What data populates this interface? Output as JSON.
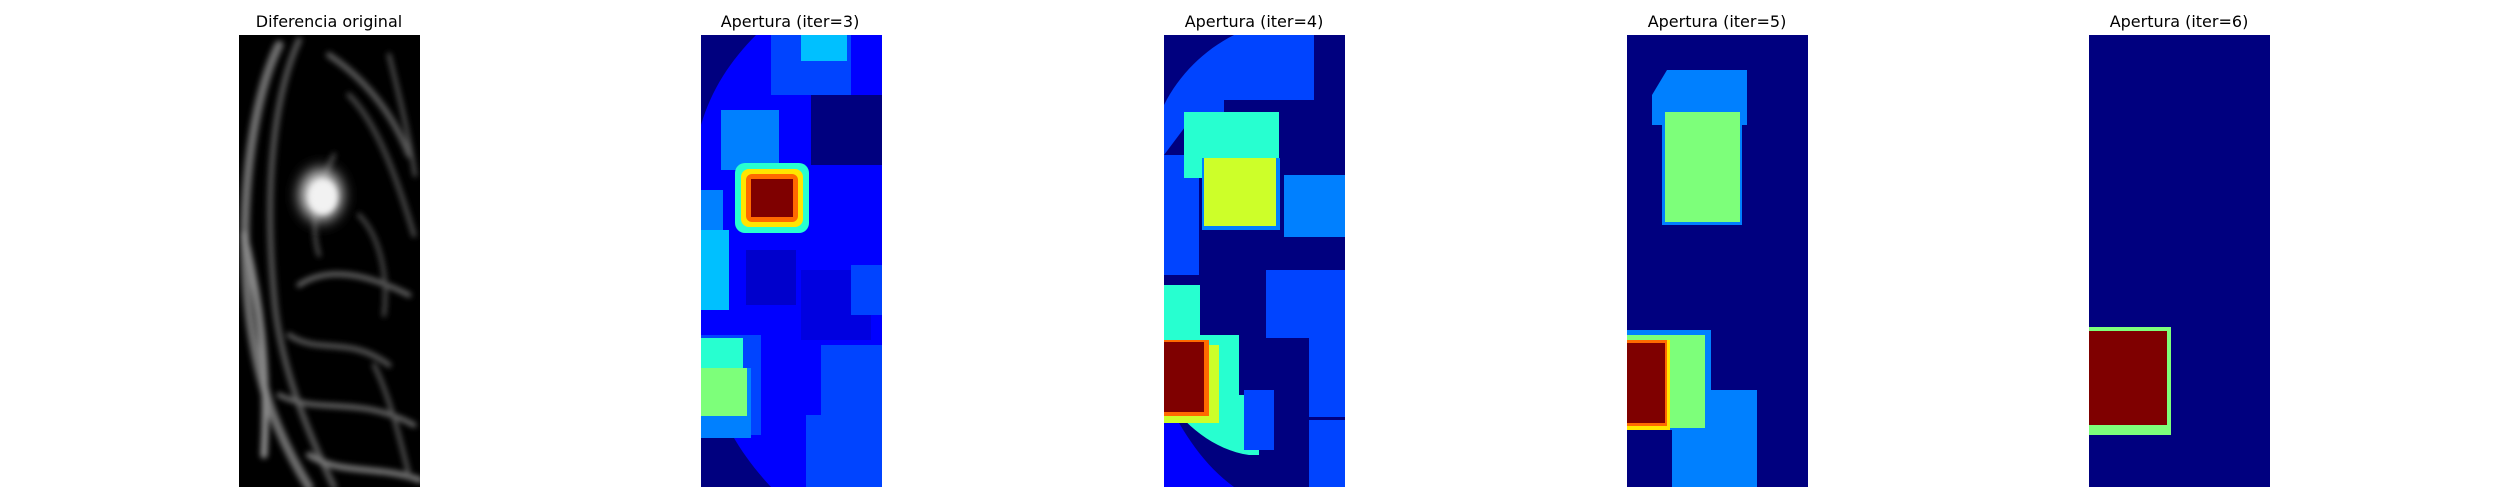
{
  "figure": {
    "panels": [
      {
        "id": "original",
        "title": "Diferencia original"
      },
      {
        "id": "iter3",
        "title": "Apertura (iter=3)"
      },
      {
        "id": "iter4",
        "title": "Apertura (iter=4)"
      },
      {
        "id": "iter5",
        "title": "Apertura (iter=5)"
      },
      {
        "id": "iter6",
        "title": "Apertura (iter=6)"
      }
    ]
  },
  "colors": {
    "jet_dark_blue": "#00007f",
    "jet_blue": "#0000ff",
    "jet_mid_blue": "#0044ff",
    "jet_light_blue": "#0080ff",
    "jet_sky": "#00c0ff",
    "jet_cyan": "#27ffd0",
    "jet_green": "#7dff7a",
    "jet_yellow_green": "#cdff29",
    "jet_yellow": "#ffe600",
    "jet_orange": "#ff6a00",
    "jet_dark_red": "#7f0000",
    "gray_bg": "#000000",
    "gray_light": "#e8e8e8"
  }
}
